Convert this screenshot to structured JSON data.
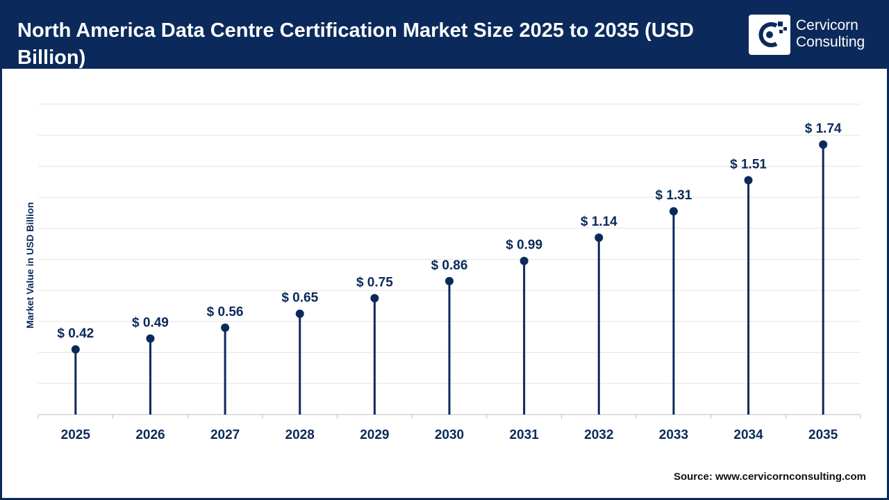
{
  "header": {
    "title": "North America Data Centre Certification Market Size 2025 to 2035 (USD Billion)",
    "logo": {
      "line1": "Cervicorn",
      "line2": "Consulting",
      "icon": "cervicorn-logo-icon"
    }
  },
  "colors": {
    "header_bg": "#0b2a5b",
    "marker": "#0b2a5b",
    "grid": "#e3e3e3",
    "text": "#0b2a5b"
  },
  "chart_data": {
    "type": "lollipop",
    "categories": [
      "2025",
      "2026",
      "2027",
      "2028",
      "2029",
      "2030",
      "2031",
      "2032",
      "2033",
      "2034",
      "2035"
    ],
    "values": [
      0.42,
      0.49,
      0.56,
      0.65,
      0.75,
      0.86,
      0.99,
      1.14,
      1.31,
      1.51,
      1.74
    ],
    "data_labels": [
      "$ 0.42",
      "$ 0.49",
      "$ 0.56",
      "$ 0.65",
      "$ 0.75",
      "$ 0.86",
      "$ 0.99",
      "$ 1.14",
      "$ 1.31",
      "$ 1.51",
      "$ 1.74"
    ],
    "ylabel": "Market Value in USD Billion",
    "xlabel": "",
    "ylim": [
      0,
      2.0
    ],
    "grid": true,
    "legend": "none"
  },
  "footer": {
    "source_prefix": "Source:",
    "source_url": "www.cervicornconsulting.com"
  }
}
